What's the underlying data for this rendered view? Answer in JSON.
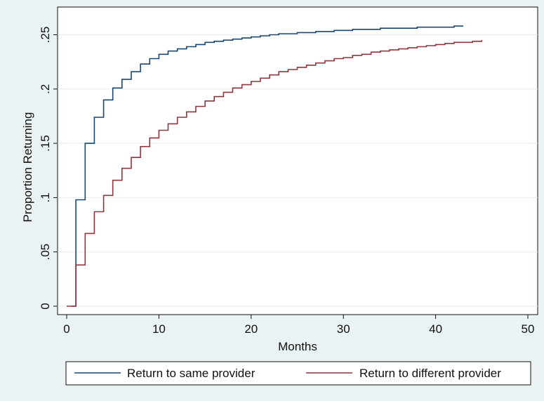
{
  "chart_data": {
    "type": "line",
    "step": true,
    "title": "",
    "xlabel": "Months",
    "ylabel": "Proportion Returning",
    "xlim": [
      0,
      50
    ],
    "ylim": [
      0,
      0.26
    ],
    "xticks": [
      0,
      10,
      20,
      30,
      40,
      50
    ],
    "xtick_labels": [
      "0",
      "10",
      "20",
      "30",
      "40",
      "50"
    ],
    "yticks": [
      0,
      0.05,
      0.1,
      0.15,
      0.2,
      0.25
    ],
    "ytick_labels": [
      "0",
      ".05",
      ".1",
      ".15",
      ".2",
      ".25"
    ],
    "grid": true,
    "legend_position": "bottom",
    "series": [
      {
        "name": "Return to same provider",
        "color": "#1a476f",
        "x": [
          0.5,
          1,
          2,
          3,
          4,
          5,
          6,
          7,
          8,
          9,
          10,
          11,
          12,
          13,
          14,
          15,
          16,
          17,
          18,
          19,
          20,
          21,
          22,
          23,
          24,
          25,
          26,
          27,
          28,
          29,
          30,
          31,
          32,
          33,
          34,
          35,
          36,
          37,
          38,
          39,
          40,
          41,
          42,
          43
        ],
        "y": [
          0,
          0.098,
          0.15,
          0.174,
          0.19,
          0.201,
          0.209,
          0.216,
          0.223,
          0.228,
          0.232,
          0.235,
          0.237,
          0.239,
          0.241,
          0.243,
          0.244,
          0.245,
          0.246,
          0.247,
          0.248,
          0.249,
          0.25,
          0.251,
          0.251,
          0.252,
          0.252,
          0.253,
          0.253,
          0.254,
          0.254,
          0.255,
          0.255,
          0.255,
          0.256,
          0.256,
          0.256,
          0.256,
          0.257,
          0.257,
          0.257,
          0.257,
          0.258,
          0.258
        ]
      },
      {
        "name": "Return to different provider",
        "color": "#90353b",
        "x": [
          0,
          1,
          2,
          3,
          4,
          5,
          6,
          7,
          8,
          9,
          10,
          11,
          12,
          13,
          14,
          15,
          16,
          17,
          18,
          19,
          20,
          21,
          22,
          23,
          24,
          25,
          26,
          27,
          28,
          29,
          30,
          31,
          32,
          33,
          34,
          35,
          36,
          37,
          38,
          39,
          40,
          41,
          42,
          43,
          44,
          45
        ],
        "y": [
          0,
          0.038,
          0.067,
          0.087,
          0.102,
          0.116,
          0.127,
          0.137,
          0.147,
          0.155,
          0.162,
          0.168,
          0.174,
          0.179,
          0.184,
          0.189,
          0.193,
          0.197,
          0.201,
          0.204,
          0.207,
          0.21,
          0.213,
          0.216,
          0.218,
          0.22,
          0.222,
          0.224,
          0.226,
          0.228,
          0.229,
          0.231,
          0.232,
          0.234,
          0.235,
          0.236,
          0.237,
          0.238,
          0.239,
          0.24,
          0.241,
          0.242,
          0.243,
          0.243,
          0.244,
          0.245
        ]
      }
    ]
  }
}
